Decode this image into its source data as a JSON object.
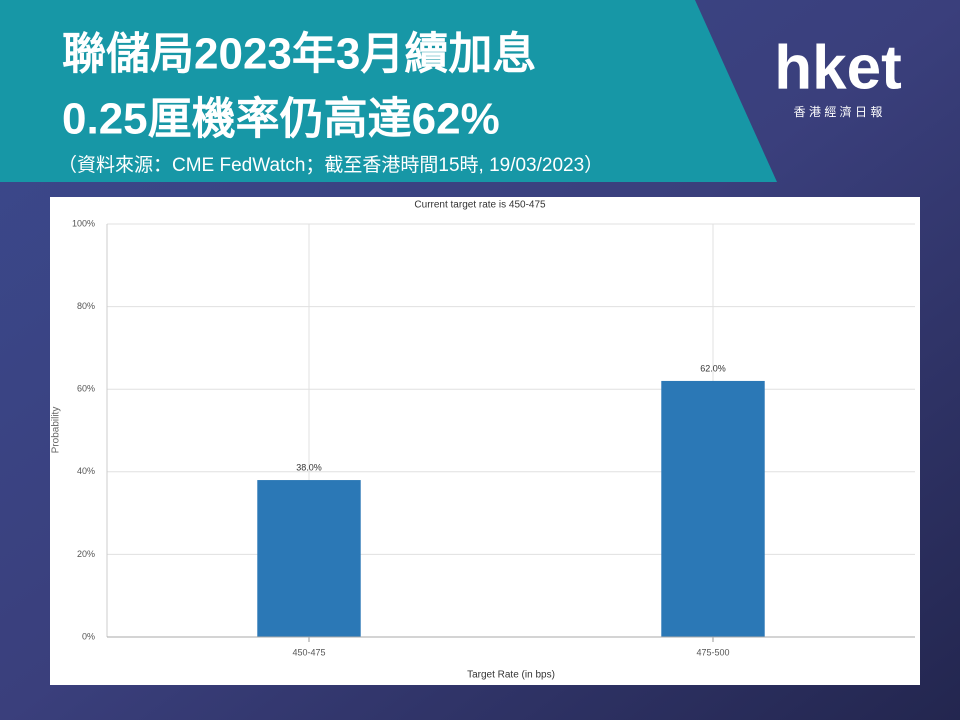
{
  "header": {
    "title": [
      "聯儲局2023年3月續加息",
      "0.25厘機率仍高達62%"
    ],
    "source": "（資料來源：CME FedWatch；截至香港時間15時, 19/03/2023）"
  },
  "logo": {
    "name": "hket",
    "tagline": "香 港 經 濟 日 報"
  },
  "chart_data": {
    "type": "bar",
    "title": "Current target rate is 450-475",
    "categories": [
      "450-475",
      "475-500"
    ],
    "values": [
      38,
      62
    ],
    "value_labels": [
      "38.0%",
      "62.0%"
    ],
    "color": "#2b78b6",
    "ylim": [
      0,
      100
    ],
    "yticks": [
      {
        "value": 0,
        "label": "0%"
      },
      {
        "value": 20,
        "label": "20%"
      },
      {
        "value": 40,
        "label": "40%"
      },
      {
        "value": 60,
        "label": "60%"
      },
      {
        "value": 80,
        "label": "80%"
      },
      {
        "value": 100,
        "label": "100%"
      }
    ],
    "ylabel": "Probability",
    "xlabel": "Target Rate (in bps)",
    "grid": true
  }
}
